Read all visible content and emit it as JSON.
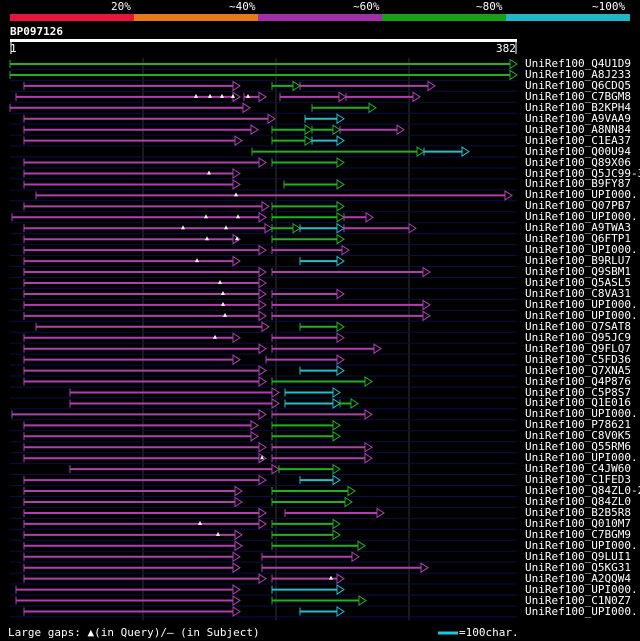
{
  "scale": {
    "labels": [
      "20%",
      "~40%",
      "~60%",
      "~80%",
      "~100%"
    ],
    "colors": [
      "#e8143c",
      "#e87818",
      "#a030a8",
      "#18a018",
      "#20b8c8"
    ]
  },
  "query": {
    "name": "BP097126",
    "start": "1",
    "end": "382"
  },
  "legend": {
    "gaps": "Large gaps: ▲(in Query)/– (in Subject)",
    "scale": "=100char."
  },
  "hits": [
    {
      "name": "UniRef100_Q4U1D9",
      "segs": [
        [
          10,
          517,
          "g"
        ]
      ],
      "caret": []
    },
    {
      "name": "UniRef100_A8J233",
      "segs": [
        [
          10,
          517,
          "g"
        ]
      ],
      "caret": []
    },
    {
      "name": "UniRef100_Q6CDQ5",
      "segs": [
        [
          24,
          240,
          "m"
        ],
        [
          272,
          300,
          "g"
        ],
        [
          300,
          435,
          "m"
        ]
      ],
      "caret": []
    },
    {
      "name": "UniRef100_C7BGM8",
      "segs": [
        [
          16,
          240,
          "m"
        ],
        [
          244,
          266,
          "m"
        ],
        [
          280,
          346,
          "m"
        ],
        [
          346,
          420,
          "m"
        ]
      ],
      "caret": [
        196,
        210,
        222,
        233,
        248
      ]
    },
    {
      "name": "UniRef100_B2KPH4",
      "segs": [
        [
          10,
          250,
          "m"
        ],
        [
          312,
          376,
          "g"
        ]
      ],
      "caret": []
    },
    {
      "name": "UniRef100_A9VAA9",
      "segs": [
        [
          24,
          275,
          "m"
        ],
        [
          305,
          344,
          "c"
        ]
      ],
      "caret": []
    },
    {
      "name": "UniRef100_A8NN84",
      "segs": [
        [
          24,
          258,
          "m"
        ],
        [
          272,
          312,
          "g"
        ],
        [
          312,
          340,
          "g"
        ],
        [
          340,
          404,
          "m"
        ]
      ],
      "caret": []
    },
    {
      "name": "UniRef100_C1EA37",
      "segs": [
        [
          24,
          242,
          "m"
        ],
        [
          272,
          312,
          "g"
        ],
        [
          312,
          344,
          "c"
        ]
      ],
      "caret": []
    },
    {
      "name": "UniRef100_Q00U94",
      "segs": [
        [
          252,
          424,
          "g"
        ],
        [
          424,
          469,
          "c"
        ]
      ],
      "caret": []
    },
    {
      "name": "UniRef100_Q89X06",
      "segs": [
        [
          24,
          266,
          "m"
        ],
        [
          272,
          344,
          "g"
        ]
      ],
      "caret": []
    },
    {
      "name": "UniRef100_Q5JC99-3",
      "segs": [
        [
          24,
          240,
          "m"
        ]
      ],
      "caret": [
        209
      ]
    },
    {
      "name": "UniRef100_B9FY87",
      "segs": [
        [
          24,
          240,
          "m"
        ],
        [
          284,
          344,
          "g"
        ]
      ],
      "caret": []
    },
    {
      "name": "UniRef100_UPI000..",
      "segs": [
        [
          36,
          512,
          "m"
        ]
      ],
      "caret": [
        236
      ]
    },
    {
      "name": "UniRef100_Q07PB7",
      "segs": [
        [
          24,
          269,
          "m"
        ],
        [
          272,
          344,
          "g"
        ]
      ],
      "caret": []
    },
    {
      "name": "UniRef100_UPI000..",
      "segs": [
        [
          12,
          266,
          "m"
        ],
        [
          272,
          344,
          "g"
        ],
        [
          344,
          373,
          "m"
        ]
      ],
      "caret": [
        206,
        238
      ]
    },
    {
      "name": "UniRef100_A9TWA3",
      "segs": [
        [
          24,
          272,
          "m"
        ],
        [
          272,
          300,
          "g"
        ],
        [
          300,
          344,
          "c"
        ],
        [
          344,
          416,
          "m"
        ]
      ],
      "caret": [
        183,
        226
      ]
    },
    {
      "name": "UniRef100_Q6FTP1",
      "segs": [
        [
          24,
          240,
          "m"
        ],
        [
          272,
          344,
          "g"
        ]
      ],
      "caret": [
        207,
        237
      ]
    },
    {
      "name": "UniRef100_UPI000..",
      "segs": [
        [
          24,
          266,
          "m"
        ],
        [
          272,
          349,
          "m"
        ]
      ],
      "caret": []
    },
    {
      "name": "UniRef100_B9RLU7",
      "segs": [
        [
          24,
          240,
          "m"
        ],
        [
          300,
          344,
          "c"
        ]
      ],
      "caret": [
        197
      ]
    },
    {
      "name": "UniRef100_Q9SBM1",
      "segs": [
        [
          24,
          266,
          "m"
        ],
        [
          272,
          430,
          "m"
        ]
      ],
      "caret": []
    },
    {
      "name": "UniRef100_Q5ASL5",
      "segs": [
        [
          24,
          266,
          "m"
        ]
      ],
      "caret": [
        220
      ]
    },
    {
      "name": "UniRef100_C8VA31",
      "segs": [
        [
          24,
          266,
          "m"
        ],
        [
          272,
          344,
          "m"
        ]
      ],
      "caret": [
        223
      ]
    },
    {
      "name": "UniRef100_UPI000..",
      "segs": [
        [
          24,
          266,
          "m"
        ],
        [
          272,
          430,
          "m"
        ]
      ],
      "caret": [
        223
      ]
    },
    {
      "name": "UniRef100_UPI000..",
      "segs": [
        [
          24,
          266,
          "m"
        ],
        [
          272,
          430,
          "m"
        ]
      ],
      "caret": [
        225
      ]
    },
    {
      "name": "UniRef100_Q7SAT8",
      "segs": [
        [
          36,
          269,
          "m"
        ],
        [
          300,
          344,
          "g"
        ]
      ],
      "caret": []
    },
    {
      "name": "UniRef100_Q95JC9",
      "segs": [
        [
          24,
          240,
          "m"
        ],
        [
          272,
          344,
          "m"
        ]
      ],
      "caret": [
        215
      ]
    },
    {
      "name": "UniRef100_Q9FLQ7",
      "segs": [
        [
          24,
          266,
          "m"
        ],
        [
          272,
          381,
          "m"
        ]
      ],
      "caret": []
    },
    {
      "name": "UniRef100_C5FD36",
      "segs": [
        [
          24,
          240,
          "m"
        ],
        [
          266,
          344,
          "m"
        ]
      ],
      "caret": []
    },
    {
      "name": "UniRef100_Q7XNA5",
      "segs": [
        [
          24,
          266,
          "m"
        ],
        [
          300,
          344,
          "c"
        ]
      ],
      "caret": []
    },
    {
      "name": "UniRef100_Q4P876",
      "segs": [
        [
          24,
          266,
          "m"
        ],
        [
          272,
          372,
          "g"
        ]
      ],
      "caret": []
    },
    {
      "name": "UniRef100_C5P8S7",
      "segs": [
        [
          70,
          279,
          "m"
        ],
        [
          285,
          340,
          "c"
        ]
      ],
      "caret": []
    },
    {
      "name": "UniRef100_Q1E016",
      "segs": [
        [
          70,
          279,
          "m"
        ],
        [
          285,
          340,
          "c"
        ],
        [
          340,
          358,
          "g"
        ]
      ],
      "caret": []
    },
    {
      "name": "UniRef100_UPI000..",
      "segs": [
        [
          12,
          266,
          "m"
        ],
        [
          272,
          372,
          "m"
        ]
      ],
      "caret": []
    },
    {
      "name": "UniRef100_P78621",
      "segs": [
        [
          24,
          258,
          "m"
        ],
        [
          272,
          340,
          "g"
        ]
      ],
      "caret": []
    },
    {
      "name": "UniRef100_C8V0K5",
      "segs": [
        [
          24,
          258,
          "m"
        ],
        [
          272,
          340,
          "g"
        ]
      ],
      "caret": []
    },
    {
      "name": "UniRef100_Q55RM6",
      "segs": [
        [
          24,
          266,
          "m"
        ],
        [
          272,
          372,
          "m"
        ]
      ],
      "caret": []
    },
    {
      "name": "UniRef100_UPI000..",
      "segs": [
        [
          24,
          266,
          "m"
        ],
        [
          272,
          372,
          "m"
        ]
      ],
      "caret": [
        262
      ]
    },
    {
      "name": "UniRef100_C4JW60",
      "segs": [
        [
          70,
          279,
          "m"
        ],
        [
          279,
          340,
          "g"
        ]
      ],
      "caret": []
    },
    {
      "name": "UniRef100_C1FED3",
      "segs": [
        [
          24,
          266,
          "m"
        ],
        [
          300,
          340,
          "c"
        ]
      ],
      "caret": []
    },
    {
      "name": "UniRef100_Q84ZL0-2",
      "segs": [
        [
          24,
          242,
          "m"
        ],
        [
          272,
          355,
          "g"
        ]
      ],
      "caret": []
    },
    {
      "name": "UniRef100_Q84ZL0",
      "segs": [
        [
          24,
          242,
          "m"
        ],
        [
          272,
          352,
          "g"
        ]
      ],
      "caret": []
    },
    {
      "name": "UniRef100_B2B5R8",
      "segs": [
        [
          24,
          266,
          "m"
        ],
        [
          285,
          384,
          "m"
        ]
      ],
      "caret": []
    },
    {
      "name": "UniRef100_Q010M7",
      "segs": [
        [
          24,
          266,
          "m"
        ],
        [
          272,
          340,
          "g"
        ]
      ],
      "caret": [
        200
      ]
    },
    {
      "name": "UniRef100_C7BGM9",
      "segs": [
        [
          24,
          242,
          "m"
        ],
        [
          272,
          340,
          "g"
        ]
      ],
      "caret": [
        218
      ]
    },
    {
      "name": "UniRef100_UPI000..",
      "segs": [
        [
          24,
          242,
          "m"
        ],
        [
          272,
          365,
          "g"
        ]
      ],
      "caret": []
    },
    {
      "name": "UniRef100_Q9LUI1",
      "segs": [
        [
          24,
          240,
          "m"
        ],
        [
          262,
          359,
          "m"
        ]
      ],
      "caret": []
    },
    {
      "name": "UniRef100_Q5KG31",
      "segs": [
        [
          24,
          240,
          "m"
        ],
        [
          262,
          428,
          "m"
        ]
      ],
      "caret": []
    },
    {
      "name": "UniRef100_A2QQW4",
      "segs": [
        [
          24,
          266,
          "m"
        ],
        [
          272,
          344,
          "m"
        ]
      ],
      "caret": [
        331
      ]
    },
    {
      "name": "UniRef100_UPI000..",
      "segs": [
        [
          16,
          240,
          "m"
        ],
        [
          272,
          344,
          "c"
        ]
      ],
      "caret": []
    },
    {
      "name": "UniRef100_C1N0Z7",
      "segs": [
        [
          16,
          240,
          "m"
        ],
        [
          272,
          366,
          "g"
        ]
      ],
      "caret": []
    },
    {
      "name": "UniRef100_UPI000..",
      "segs": [
        [
          24,
          240,
          "m"
        ],
        [
          300,
          344,
          "c"
        ]
      ],
      "caret": []
    }
  ]
}
